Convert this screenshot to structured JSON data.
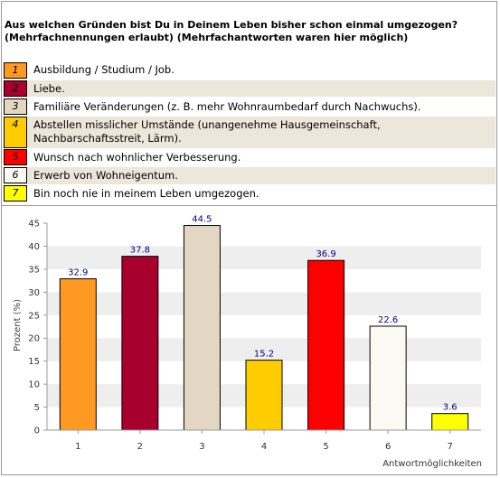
{
  "question": {
    "line1": "Aus welchen Gründen bist Du in Deinem Leben bisher schon einmal umgezogen?",
    "line2": "(Mehrfachnennungen erlaubt) (Mehrfachantworten waren hier möglich)"
  },
  "legend": [
    {
      "num": "1",
      "label": "Ausbildung / Studium / Job.",
      "color": "#ff9922"
    },
    {
      "num": "2",
      "label": "Liebe.",
      "color": "#a8002e"
    },
    {
      "num": "3",
      "label": "Familiäre Veränderungen (z. B. mehr Wohnraumbedarf durch Nachwuchs).",
      "color": "#e3d6c2"
    },
    {
      "num": "4",
      "label": "Abstellen misslicher Umstände (unangenehme Hausgemeinschaft,",
      "label2": "Nachbarschaftsstreit, Lärm).",
      "color": "#ffcc00"
    },
    {
      "num": "5",
      "label": "Wunsch nach wohnlicher Verbesserung.",
      "color": "#ff0000"
    },
    {
      "num": "6",
      "label": "Erwerb von Wohneigentum.",
      "color": "#fafaf2"
    },
    {
      "num": "7",
      "label": "Bin noch nie in meinem Leben umgezogen.",
      "color": "#ffff00"
    }
  ],
  "chart_data": {
    "type": "bar",
    "categories": [
      "1",
      "2",
      "3",
      "4",
      "5",
      "6",
      "7"
    ],
    "values": [
      32.9,
      37.8,
      44.5,
      15.2,
      36.9,
      22.6,
      3.6
    ],
    "value_labels": [
      "32.9",
      "37.8",
      "44.5",
      "15.2",
      "36.9",
      "22.6",
      "3.6"
    ],
    "colors": [
      "#ff9922",
      "#a8002e",
      "#e3d6c2",
      "#ffcc00",
      "#ff0000",
      "#fafaf2",
      "#ffff00"
    ],
    "ylabel": "Prozent (%)",
    "xlabel": "Antwortmöglichkeiten",
    "ylim": [
      0,
      45
    ],
    "yticks": [
      0,
      5,
      10,
      15,
      20,
      25,
      30,
      35,
      40,
      45
    ],
    "grid": true,
    "grid_style": "alternating bands"
  }
}
